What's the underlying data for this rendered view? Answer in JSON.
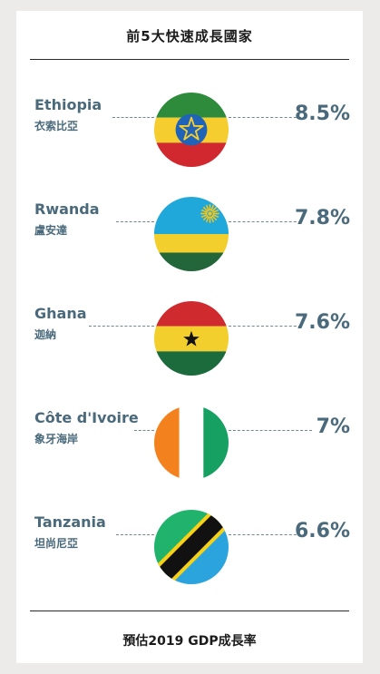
{
  "title": "前5大快速成長國家",
  "footer": "預估2019 GDP成長率",
  "chart_data": {
    "type": "bar",
    "title": "前5大快速成長國家",
    "xlabel": "",
    "ylabel": "預估2019 GDP成長率",
    "categories": [
      "Ethiopia",
      "Rwanda",
      "Ghana",
      "Côte d'Ivoire",
      "Tanzania"
    ],
    "categories_zh": [
      "衣索比亞",
      "盧安達",
      "迦納",
      "象牙海岸",
      "坦尚尼亞"
    ],
    "values": [
      8.5,
      7.8,
      7.6,
      7.0,
      6.6
    ],
    "value_labels": [
      "8.5%",
      "7.8%",
      "7.6%",
      "7%",
      "6.6%"
    ],
    "unit": "%"
  },
  "rows": [
    {
      "en": "Ethiopia",
      "zh": "衣索比亞",
      "value": "8.5%",
      "flag": "ethiopia-flag-icon"
    },
    {
      "en": "Rwanda",
      "zh": "盧安達",
      "value": "7.8%",
      "flag": "rwanda-flag-icon"
    },
    {
      "en": "Ghana",
      "zh": "迦納",
      "value": "7.6%",
      "flag": "ghana-flag-icon"
    },
    {
      "en": "Côte d'Ivoire",
      "zh": "象牙海岸",
      "value": "7%",
      "flag": "cote-divoire-flag-icon"
    },
    {
      "en": "Tanzania",
      "zh": "坦尚尼亞",
      "value": "6.6%",
      "flag": "tanzania-flag-icon"
    }
  ],
  "colors": {
    "label": "#4a6a7c",
    "ethiopia": [
      "#2e8b3c",
      "#f5cd2e",
      "#d0282e",
      "#1f64b8"
    ],
    "rwanda": [
      "#1fa8d9",
      "#f2cf2c",
      "#22663a",
      "#f5c51a"
    ],
    "ghana": [
      "#cf2a2e",
      "#f2cf2c",
      "#1c6b3d",
      "#111111"
    ],
    "cote_divoire": [
      "#f3821e",
      "#ffffff",
      "#16a061"
    ],
    "tanzania": [
      "#1fb36b",
      "#2ba4de",
      "#111111",
      "#f7d117"
    ]
  }
}
